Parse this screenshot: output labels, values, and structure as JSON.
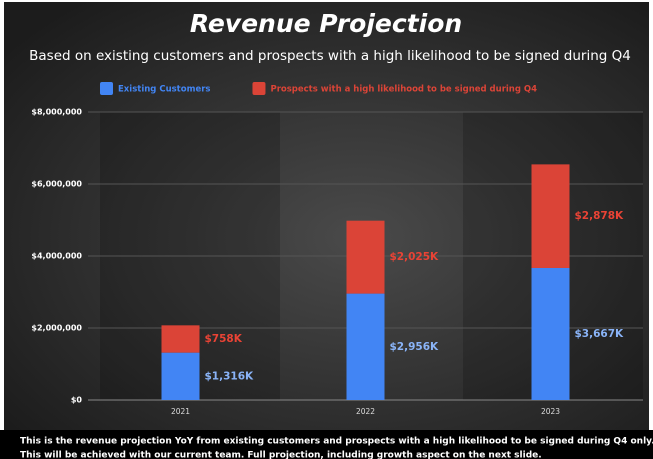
{
  "chart_data": {
    "type": "stacked_bar",
    "title": "Revenue Projection",
    "subtitle": "Based on existing customers and prospects with a high likelihood to be signed during Q4",
    "categories": [
      "2021",
      "2022",
      "2023"
    ],
    "series": [
      {
        "name": "Existing Customers",
        "color": "#4285f4",
        "values": [
          1316000,
          2956000,
          3667000
        ],
        "value_labels": [
          "$1,316K",
          "$2,956K",
          "$3,667K"
        ]
      },
      {
        "name": "Prospects with a high likelihood to be signed during Q4",
        "color": "#db4437",
        "values": [
          758000,
          2025000,
          2878000
        ],
        "value_labels": [
          "$758K",
          "$2,025K",
          "$2,878K"
        ]
      }
    ],
    "ylim": [
      0,
      8000000
    ],
    "yticks": [
      {
        "value": 0,
        "label": "$0"
      },
      {
        "value": 2000000,
        "label": "$2,000,000"
      },
      {
        "value": 4000000,
        "label": "$4,000,000"
      },
      {
        "value": 6000000,
        "label": "$6,000,000"
      },
      {
        "value": 8000000,
        "label": "$8,000,000"
      }
    ],
    "grid": true,
    "legend": "top",
    "footnote": [
      "This is the revenue projection YoY from existing customers  and prospects with a high likelihood to be signed during Q4 only.",
      "This will be achieved with our current team. Full projection, including growth aspect  on the next slide."
    ]
  }
}
